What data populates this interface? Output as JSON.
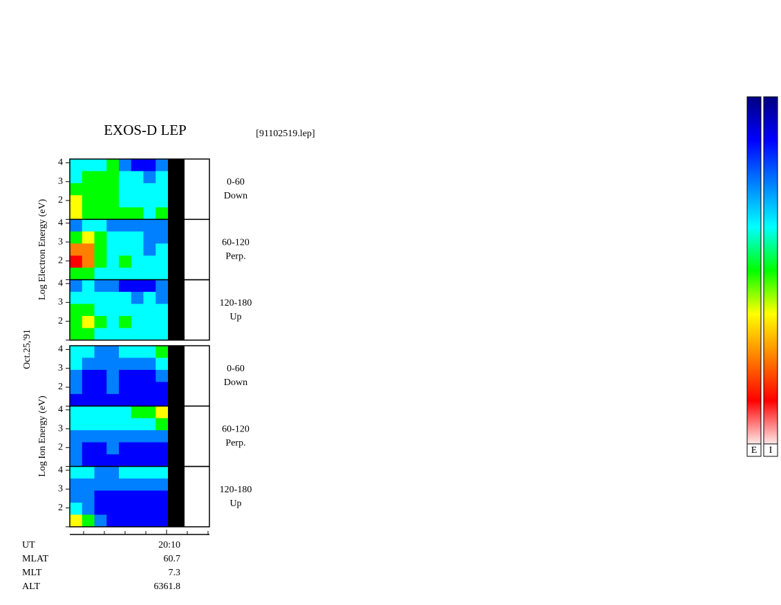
{
  "chart_data": {
    "type": "spectrogram",
    "title": "EXOS-D LEP",
    "subtitle": "[91102519.lep]",
    "date_label": "Oct.25,'91",
    "colorscale": [
      "#000080",
      "#0000ff",
      "#0080ff",
      "#00ffff",
      "#00ff00",
      "#ffff00",
      "#ff8000",
      "#ff0000",
      "#ffe8e8"
    ],
    "zlim": [
      0,
      8
    ],
    "ylim": [
      1,
      4.2
    ],
    "yticks": [
      2,
      3,
      4
    ],
    "groups": [
      {
        "ylabel": "Log Electron Energy (eV)",
        "panels": [
          {
            "label": [
              "0-60",
              "Down"
            ],
            "values": [
              [
                3,
                3,
                3,
                4,
                2,
                1,
                1,
                2
              ],
              [
                3,
                4,
                4,
                4,
                3,
                3,
                2,
                3
              ],
              [
                4,
                4,
                4,
                4,
                3,
                3,
                3,
                3
              ],
              [
                5,
                4,
                4,
                4,
                3,
                3,
                3,
                3
              ],
              [
                5,
                4,
                4,
                4,
                4,
                4,
                3,
                4
              ]
            ]
          },
          {
            "label": [
              "60-120",
              "Perp."
            ],
            "values": [
              [
                2,
                3,
                3,
                2,
                2,
                2,
                2,
                2
              ],
              [
                4,
                5,
                4,
                3,
                3,
                3,
                2,
                2
              ],
              [
                6,
                6,
                4,
                3,
                3,
                3,
                2,
                3
              ],
              [
                7,
                6,
                4,
                3,
                4,
                3,
                3,
                3
              ],
              [
                4,
                4,
                3,
                3,
                3,
                3,
                3,
                3
              ]
            ]
          },
          {
            "label": [
              "120-180",
              "Up"
            ],
            "values": [
              [
                2,
                3,
                2,
                2,
                1,
                1,
                1,
                2
              ],
              [
                3,
                3,
                3,
                3,
                3,
                2,
                3,
                2
              ],
              [
                4,
                4,
                3,
                3,
                3,
                3,
                3,
                3
              ],
              [
                4,
                5,
                4,
                3,
                4,
                3,
                3,
                3
              ],
              [
                4,
                4,
                3,
                3,
                3,
                3,
                3,
                3
              ]
            ]
          }
        ]
      },
      {
        "ylabel": "Log Ion Energy (eV)",
        "panels": [
          {
            "label": [
              "0-60",
              "Down"
            ],
            "values": [
              [
                3,
                3,
                2,
                2,
                3,
                3,
                3,
                4
              ],
              [
                3,
                2,
                2,
                2,
                2,
                2,
                2,
                3
              ],
              [
                2,
                1,
                1,
                2,
                1,
                1,
                1,
                2
              ],
              [
                2,
                1,
                1,
                2,
                1,
                1,
                1,
                1
              ],
              [
                1,
                1,
                1,
                1,
                1,
                1,
                1,
                1
              ]
            ]
          },
          {
            "label": [
              "60-120",
              "Perp."
            ],
            "values": [
              [
                3,
                3,
                3,
                3,
                3,
                4,
                4,
                5
              ],
              [
                3,
                3,
                3,
                3,
                3,
                3,
                3,
                4
              ],
              [
                2,
                2,
                2,
                2,
                2,
                2,
                2,
                2
              ],
              [
                2,
                1,
                1,
                2,
                1,
                1,
                1,
                1
              ],
              [
                2,
                1,
                1,
                1,
                1,
                1,
                1,
                1
              ]
            ]
          },
          {
            "label": [
              "120-180",
              "Up"
            ],
            "values": [
              [
                3,
                3,
                2,
                2,
                3,
                3,
                3,
                3
              ],
              [
                2,
                2,
                2,
                2,
                2,
                2,
                2,
                2
              ],
              [
                2,
                2,
                1,
                1,
                1,
                1,
                1,
                1
              ],
              [
                3,
                2,
                1,
                1,
                1,
                1,
                1,
                1
              ],
              [
                5,
                4,
                2,
                1,
                1,
                1,
                1,
                1
              ]
            ]
          }
        ]
      }
    ],
    "colorbar_labels": [
      "E",
      "I"
    ],
    "footer": [
      [
        "UT",
        "20:10"
      ],
      [
        "MLAT",
        "60.7"
      ],
      [
        "MLT",
        "7.3"
      ],
      [
        "ALT",
        "6361.8"
      ]
    ]
  }
}
